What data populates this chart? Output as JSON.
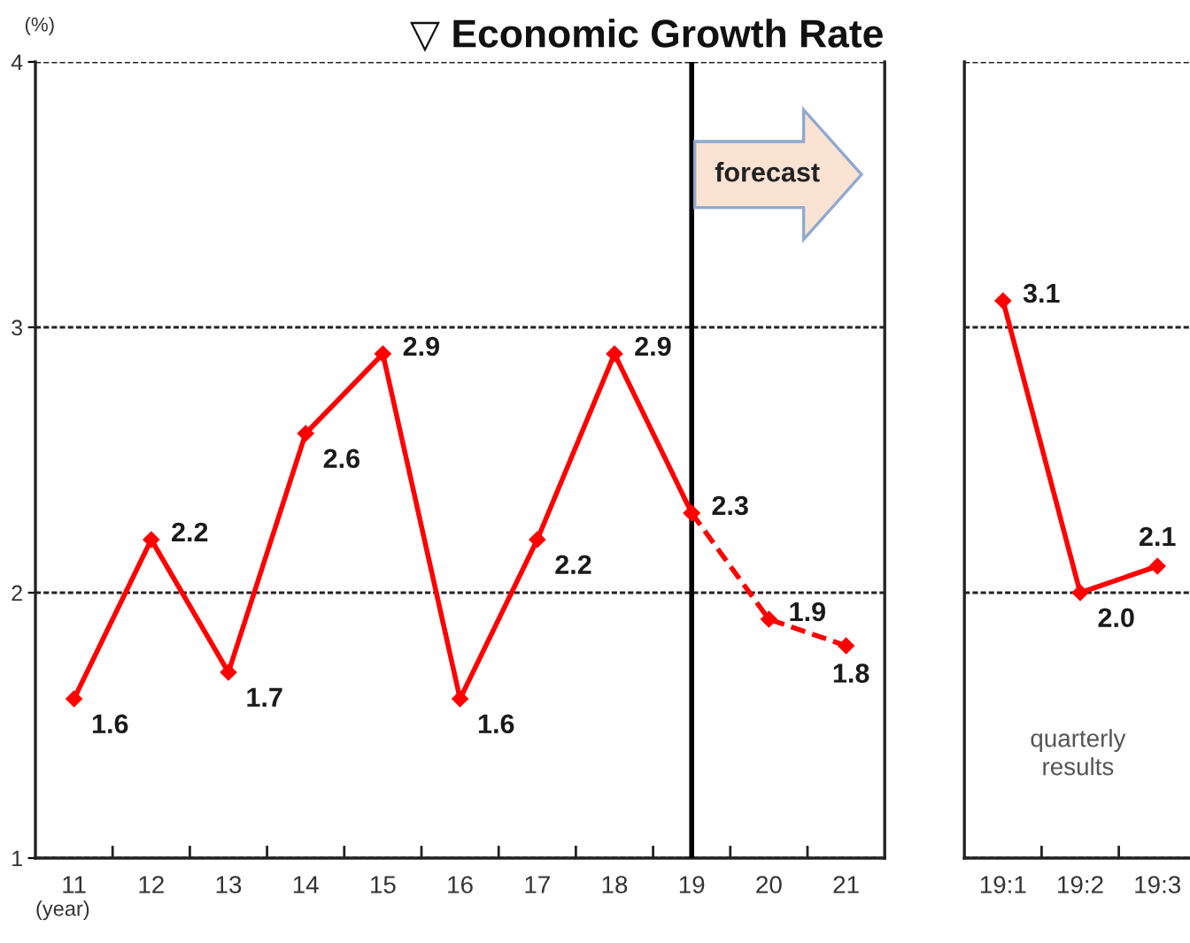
{
  "chart_data": [
    {
      "type": "line",
      "title": "▽ Economic Growth Rate",
      "xlabel": "(year)",
      "ylabel": "(%)",
      "categories": [
        "11",
        "12",
        "13",
        "14",
        "15",
        "16",
        "17",
        "18",
        "19",
        "20",
        "21"
      ],
      "ylim": [
        1,
        4
      ],
      "yticks": [
        1,
        2,
        3,
        4
      ],
      "grid": "y",
      "marker": "diamond",
      "series": [
        {
          "color": "#ff0000",
          "line_style": "solid",
          "values": [
            1.6,
            2.2,
            1.7,
            2.6,
            2.9,
            1.6,
            2.2,
            2.9,
            2.3,
            null,
            null
          ],
          "value_labels": [
            "1.6",
            "2.2",
            "1.7",
            "2.6",
            "2.9",
            "1.6",
            "2.2",
            "2.9",
            null,
            null,
            null
          ]
        },
        {
          "color": "#ff0000",
          "line_style": "dashed",
          "values": [
            null,
            null,
            null,
            null,
            null,
            null,
            null,
            null,
            2.3,
            1.9,
            1.8
          ],
          "value_labels": [
            null,
            null,
            null,
            null,
            null,
            null,
            null,
            null,
            "2.3",
            "1.9",
            "1.8"
          ]
        }
      ],
      "ref_lines": [
        {
          "axis": "x",
          "value": "19",
          "label": "forecast",
          "color": "#000000"
        }
      ]
    },
    {
      "type": "line",
      "categories": [
        "19:1",
        "19:2",
        "19:3"
      ],
      "ylim": [
        1,
        4
      ],
      "yticks": [
        1,
        2,
        3,
        4
      ],
      "tick_labels": "x",
      "grid": "y",
      "marker": "diamond",
      "series": [
        {
          "color": "#ff0000",
          "line_style": "solid",
          "values": [
            3.1,
            2.0,
            2.1
          ],
          "value_labels": [
            "3.1",
            "2.0",
            "2.1"
          ]
        }
      ],
      "annotations": [
        "quarterly\nresults"
      ]
    }
  ]
}
